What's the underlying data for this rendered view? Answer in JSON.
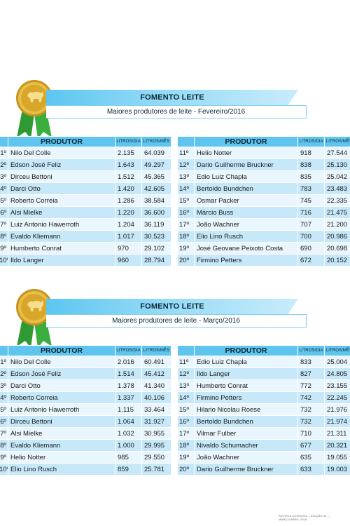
{
  "footer": "REVISTA COPAGRIL – EDIÇÃO 91 – MARÇO/ABRIL 2016",
  "colors": {
    "accent": "#5fc5ee",
    "row_light": "#e9f6fd",
    "row_dark": "#c6e8f8",
    "medal_gold": "#d8a72a",
    "ribbon_green": "#2f9a34"
  },
  "sections": [
    {
      "id": "feb",
      "title": "FOMENTO LEITE",
      "subtitle": "Maiores produtores de leite - Fevereiro/2016",
      "headers": {
        "producer": "PRODUTOR",
        "per_day": "LITROS/DIA",
        "per_month": "LITROS/MÊS"
      },
      "left_rows": [
        {
          "rank": "1º",
          "name": "Nilo Del Colle",
          "day": "2.135",
          "month": "64.039"
        },
        {
          "rank": "2º",
          "name": "Edson José Feliz",
          "day": "1.643",
          "month": "49.297"
        },
        {
          "rank": "3º",
          "name": "Dirceu Bettoni",
          "day": "1.512",
          "month": "45.365"
        },
        {
          "rank": "4º",
          "name": "Darci Otto",
          "day": "1.420",
          "month": "42.605"
        },
        {
          "rank": "5º",
          "name": "Roberto Correia",
          "day": "1.286",
          "month": "38.584"
        },
        {
          "rank": "6º",
          "name": "Alsi Mielke",
          "day": "1.220",
          "month": "36.600"
        },
        {
          "rank": "7º",
          "name": "Luiz Antonio Hawerroth",
          "day": "1.204",
          "month": "36.119"
        },
        {
          "rank": "8º",
          "name": "Evaldo Kliemann",
          "day": "1.017",
          "month": "30.523"
        },
        {
          "rank": "9º",
          "name": "Humberto Conrat",
          "day": "970",
          "month": "29.102"
        },
        {
          "rank": "10º",
          "name": "Ildo Langer",
          "day": "960",
          "month": "28.794"
        }
      ],
      "right_rows": [
        {
          "rank": "11º",
          "name": "Helio Notter",
          "day": "918",
          "month": "27.544"
        },
        {
          "rank": "12º",
          "name": "Dario Guilherme Bruckner",
          "day": "838",
          "month": "25.130"
        },
        {
          "rank": "13º",
          "name": "Edio Luiz Chapla",
          "day": "835",
          "month": "25.042"
        },
        {
          "rank": "14º",
          "name": "Bertoldo Bundchen",
          "day": "783",
          "month": "23.483"
        },
        {
          "rank": "15º",
          "name": "Osmar Packer",
          "day": "745",
          "month": "22.335"
        },
        {
          "rank": "16º",
          "name": "Márcio Buss",
          "day": "716",
          "month": "21.475"
        },
        {
          "rank": "17º",
          "name": "João Wachner",
          "day": "707",
          "month": "21.200"
        },
        {
          "rank": "18º",
          "name": "Elio Lino Rusch",
          "day": "700",
          "month": "20.986"
        },
        {
          "rank": "19º",
          "name": "José Geovane Peixoto Costa",
          "day": "690",
          "month": "20.698"
        },
        {
          "rank": "20º",
          "name": "Firmino Petters",
          "day": "672",
          "month": "20.152"
        }
      ]
    },
    {
      "id": "mar",
      "title": "FOMENTO LEITE",
      "subtitle": "Maiores produtores de leite - Março/2016",
      "headers": {
        "producer": "PRODUTOR",
        "per_day": "LITROS/DIA",
        "per_month": "LITROS/MÊS"
      },
      "left_rows": [
        {
          "rank": "1º",
          "name": "Nilo Del Colle",
          "day": "2.016",
          "month": "60.491"
        },
        {
          "rank": "2º",
          "name": "Edson José Feliz",
          "day": "1.514",
          "month": "45.412"
        },
        {
          "rank": "3º",
          "name": "Darci Otto",
          "day": "1.378",
          "month": "41.340"
        },
        {
          "rank": "4º",
          "name": "Roberto Correia",
          "day": "1.337",
          "month": "40.106"
        },
        {
          "rank": "5º",
          "name": "Luiz Antonio Hawerroth",
          "day": "1.115",
          "month": "33.464"
        },
        {
          "rank": "6º",
          "name": "Dirceu Bettoni",
          "day": "1.064",
          "month": "31.927"
        },
        {
          "rank": "7º",
          "name": "Alsi Mielke",
          "day": "1.032",
          "month": "30.955"
        },
        {
          "rank": "8º",
          "name": "Evaldo Kliemann",
          "day": "1.000",
          "month": "29.995"
        },
        {
          "rank": "9º",
          "name": "Helio Notter",
          "day": "985",
          "month": "29.550"
        },
        {
          "rank": "10º",
          "name": "Elio Lino Rusch",
          "day": "859",
          "month": "25.781"
        }
      ],
      "right_rows": [
        {
          "rank": "11º",
          "name": "Edio Luiz Chapla",
          "day": "833",
          "month": "25.004"
        },
        {
          "rank": "12º",
          "name": "Ildo Langer",
          "day": "827",
          "month": "24.805"
        },
        {
          "rank": "13º",
          "name": "Humberto Conrat",
          "day": "772",
          "month": "23.155"
        },
        {
          "rank": "14º",
          "name": "Firmino Petters",
          "day": "742",
          "month": "22.245"
        },
        {
          "rank": "15º",
          "name": "Hilario Nicolau Roese",
          "day": "732",
          "month": "21.976"
        },
        {
          "rank": "16º",
          "name": "Bertoldo Bundchen",
          "day": "732",
          "month": "21.974"
        },
        {
          "rank": "17º",
          "name": "Vilmar Fulber",
          "day": "710",
          "month": "21.311"
        },
        {
          "rank": "18º",
          "name": "Nivaldo Schumacher",
          "day": "677",
          "month": "20.321"
        },
        {
          "rank": "19º",
          "name": "João Wachner",
          "day": "635",
          "month": "19.055"
        },
        {
          "rank": "20º",
          "name": "Dario Guilherme Bruckner",
          "day": "633",
          "month": "19.003"
        }
      ]
    }
  ]
}
